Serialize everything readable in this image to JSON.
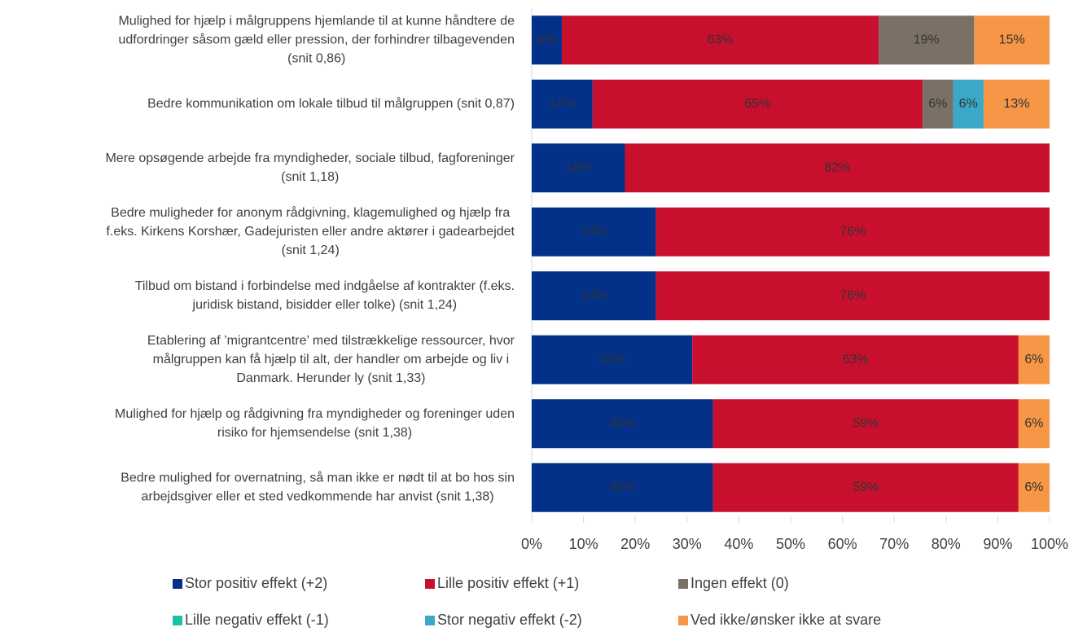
{
  "chart_data": {
    "type": "stacked_barh",
    "categories": [
      "Mulighed for hjælp i målgruppens hjemlande til at kunne håndtere de\nudfordringer såsom gæld eller pression, der forhindrer tilbagevenden\n(snit 0,86)",
      "Bedre kommunikation om lokale tilbud til målgruppen (snit 0,87)",
      "Mere opsøgende arbejde fra myndigheder, sociale tilbud, fagforeninger\n(snit 1,18)",
      "Bedre muligheder for anonym rådgivning, klagemulighed og hjælp fra\nf.eks. Kirkens Korshær, Gadejuristen eller andre aktører i gadearbejdet\n(snit 1,24)",
      "Tilbud om bistand i forbindelse med indgåelse af kontrakter (f.eks.\njuridisk bistand, bisidder eller tolke) (snit 1,24)",
      "Etablering af ’migrantcentre’ med tilstrækkelige ressourcer, hvor\nmålgruppen kan få hjælp til alt, der handler om arbejde og liv i\nDanmark. Herunder ly (snit 1,33)",
      "Mulighed for hjælp og rådgivning fra myndigheder og foreninger uden\nrisiko for hjemsendelse  (snit 1,38)",
      "Bedre mulighed for overnatning, så man ikke er nødt til at bo hos sin\narbejdsgiver eller et sted vedkommende har anvist (snit 1,38)"
    ],
    "series": [
      {
        "name": "Stor positiv effekt (+2)",
        "color": "#033189",
        "values": [
          6,
          12,
          18,
          24,
          24,
          31,
          35,
          35
        ],
        "value_labels": [
          "6%",
          "12%",
          "18%",
          "24%",
          "24%",
          "31%",
          "35%",
          "35%"
        ]
      },
      {
        "name": "Lille positiv effekt (+1)",
        "color": "#c8102e",
        "values": [
          63,
          65,
          82,
          76,
          76,
          63,
          59,
          59
        ],
        "value_labels": [
          "63%",
          "65%",
          "82%",
          "76%",
          "76%",
          "63%",
          "59%",
          "59%"
        ]
      },
      {
        "name": "Ingen effekt (0)",
        "color": "#7b7066",
        "values": [
          19,
          6,
          0,
          0,
          0,
          0,
          0,
          0
        ],
        "value_labels": [
          "19%",
          "6%",
          null,
          null,
          null,
          null,
          null,
          null
        ]
      },
      {
        "name": "Lille negativ effekt (-1)",
        "color": "#1ec0a5",
        "values": [
          0,
          0,
          0,
          0,
          0,
          0,
          0,
          0
        ],
        "value_labels": [
          null,
          null,
          null,
          null,
          null,
          null,
          null,
          null
        ]
      },
      {
        "name": "Stor negativ effekt (-2)",
        "color": "#3aa9c8",
        "values": [
          0,
          6,
          0,
          0,
          0,
          0,
          0,
          0
        ],
        "value_labels": [
          null,
          "6%",
          null,
          null,
          null,
          null,
          null,
          null
        ]
      },
      {
        "name": "Ved ikke/ønsker ikke at svare",
        "color": "#f79646",
        "values": [
          15,
          13,
          0,
          0,
          0,
          6,
          6,
          6
        ],
        "value_labels": [
          "15%",
          "13%",
          null,
          null,
          null,
          "6%",
          "6%",
          "6%"
        ]
      }
    ],
    "xlim": [
      0,
      100
    ],
    "xticks": [
      {
        "value": 0,
        "label": "0%"
      },
      {
        "value": 10,
        "label": "10%"
      },
      {
        "value": 20,
        "label": "20%"
      },
      {
        "value": 30,
        "label": "30%"
      },
      {
        "value": 40,
        "label": "40%"
      },
      {
        "value": 50,
        "label": "50%"
      },
      {
        "value": 60,
        "label": "60%"
      },
      {
        "value": 70,
        "label": "70%"
      },
      {
        "value": 80,
        "label": "80%"
      },
      {
        "value": 90,
        "label": "90%"
      },
      {
        "value": 100,
        "label": "100%"
      }
    ],
    "legend": "bottom"
  }
}
